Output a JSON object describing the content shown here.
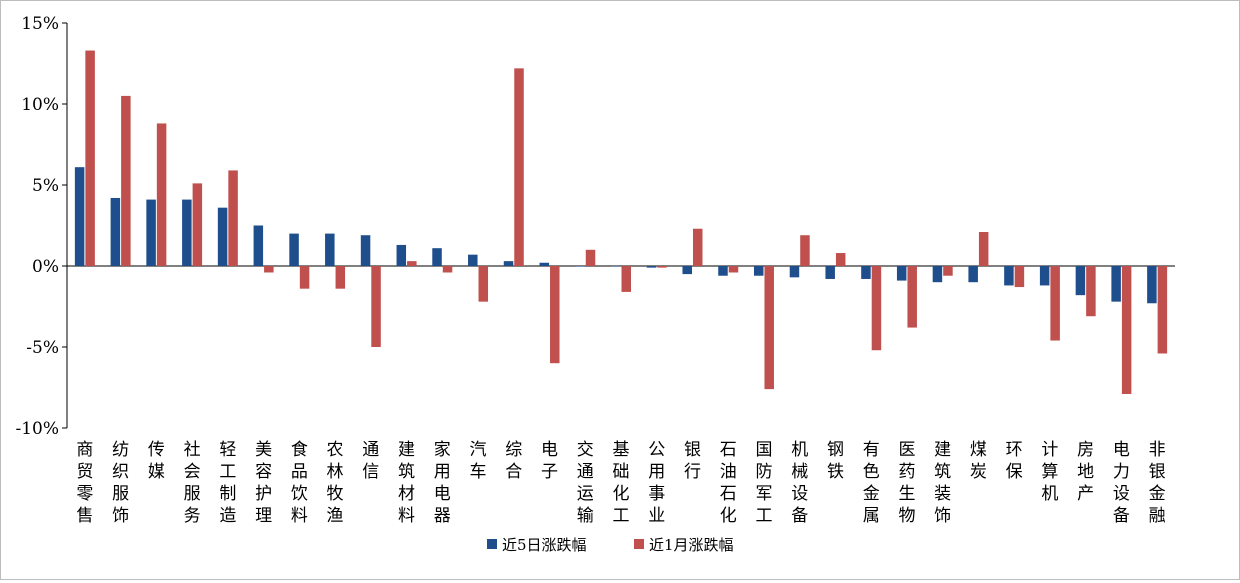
{
  "chart_data": {
    "type": "bar",
    "title": "",
    "xlabel": "",
    "ylabel": "",
    "ylim": [
      -10,
      15
    ],
    "yticks": [
      15,
      10,
      5,
      0,
      -5,
      -10
    ],
    "ytick_labels": [
      "15%",
      "10%",
      "5%",
      "0%",
      "-5%",
      "-10%"
    ],
    "grid": false,
    "legend_position": "bottom",
    "categories": [
      "商贸零售",
      "纺织服饰",
      "传媒",
      "社会服务",
      "轻工制造",
      "美容护理",
      "食品饮料",
      "农林牧渔",
      "通信",
      "建筑材料",
      "家用电器",
      "汽车",
      "综合",
      "电子",
      "交通运输",
      "基础化工",
      "公用事业",
      "银行",
      "石油石化",
      "国防军工",
      "机械设备",
      "钢铁",
      "有色金属",
      "医药生物",
      "建筑装饰",
      "煤炭",
      "环保",
      "计算机",
      "房地产",
      "电力设备",
      "非银金融"
    ],
    "series": [
      {
        "name": "近5日涨跌幅",
        "color": "#1f4e8c",
        "values": [
          6.1,
          4.2,
          4.1,
          4.1,
          3.6,
          2.5,
          2.0,
          2.0,
          1.9,
          1.3,
          1.1,
          0.7,
          0.3,
          0.2,
          0.0,
          0.0,
          -0.1,
          -0.5,
          -0.6,
          -0.6,
          -0.7,
          -0.8,
          -0.8,
          -0.9,
          -1.0,
          -1.0,
          -1.2,
          -1.2,
          -1.8,
          -2.2,
          -2.3
        ]
      },
      {
        "name": "近1月涨跌幅",
        "color": "#c0504d",
        "values": [
          13.3,
          10.5,
          8.8,
          5.1,
          5.9,
          -0.4,
          -1.4,
          -1.4,
          -5.0,
          0.3,
          -0.4,
          -2.2,
          12.2,
          -6.0,
          1.0,
          -1.6,
          -0.1,
          2.3,
          -0.4,
          -7.6,
          1.9,
          0.8,
          -5.2,
          -3.8,
          -0.6,
          2.1,
          -1.3,
          -4.6,
          -3.1,
          -7.9,
          -5.4
        ]
      }
    ]
  }
}
